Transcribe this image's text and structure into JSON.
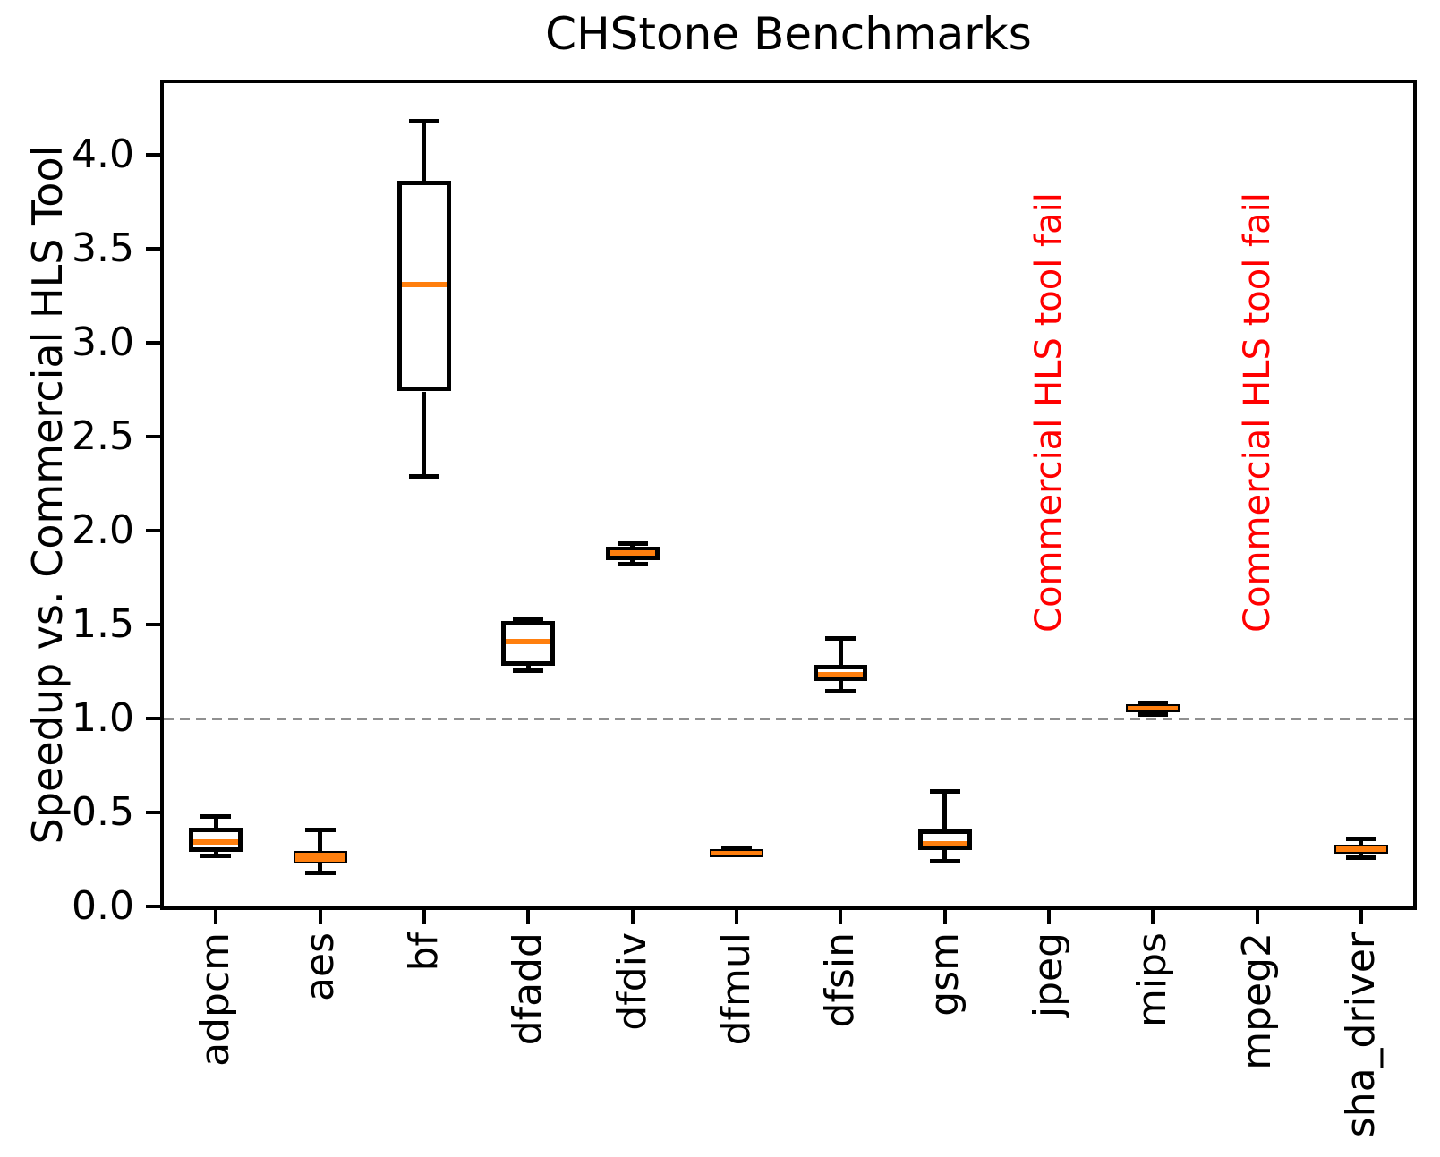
{
  "chart_data": {
    "type": "boxplot",
    "title": "CHStone Benchmarks",
    "ylabel": "Speedup vs. Commercial HLS Tool",
    "ylim": [
      0,
      4.38
    ],
    "yticks": [
      "0.0",
      "0.5",
      "1.0",
      "1.5",
      "2.0",
      "2.5",
      "3.0",
      "3.5",
      "4.0"
    ],
    "grid": false,
    "legend": null,
    "reference_line": {
      "y": 1.0,
      "style": "dashed",
      "color": "#909090"
    },
    "fail_label": "Commercial HLS tool fail",
    "categories": [
      "adpcm",
      "aes",
      "bf",
      "dfadd",
      "dfdiv",
      "dfmul",
      "dfsin",
      "gsm",
      "jpeg",
      "mips",
      "mpeg2",
      "sha_driver"
    ],
    "boxes": [
      {
        "label": "adpcm",
        "whislo": 0.27,
        "q1": 0.29,
        "med": 0.345,
        "q3": 0.42,
        "whishi": 0.48
      },
      {
        "label": "aes",
        "whislo": 0.18,
        "q1": 0.23,
        "med": 0.255,
        "q3": 0.295,
        "whishi": 0.405
      },
      {
        "label": "bf",
        "whislo": 2.29,
        "q1": 2.74,
        "med": 3.31,
        "q3": 3.86,
        "whishi": 4.18
      },
      {
        "label": "dfadd",
        "whislo": 1.255,
        "q1": 1.28,
        "med": 1.41,
        "q3": 1.52,
        "whishi": 1.53
      },
      {
        "label": "dfdiv",
        "whislo": 1.82,
        "q1": 1.845,
        "med": 1.88,
        "q3": 1.915,
        "whishi": 1.93
      },
      {
        "label": "dfmul",
        "whislo": 0.275,
        "q1": 0.28,
        "med": 0.29,
        "q3": 0.305,
        "whishi": 0.31
      },
      {
        "label": "dfsin",
        "whislo": 1.145,
        "q1": 1.2,
        "med": 1.233,
        "q3": 1.286,
        "whishi": 1.425
      },
      {
        "label": "gsm",
        "whislo": 0.24,
        "q1": 0.3,
        "med": 0.335,
        "q3": 0.41,
        "whishi": 0.61
      },
      {
        "label": "jpeg",
        "fail": true
      },
      {
        "label": "mips",
        "whislo": 1.02,
        "q1": 1.035,
        "med": 1.055,
        "q3": 1.075,
        "whishi": 1.085
      },
      {
        "label": "mpeg2",
        "fail": true
      },
      {
        "label": "sha_driver",
        "whislo": 0.26,
        "q1": 0.28,
        "med": 0.3,
        "q3": 0.33,
        "whishi": 0.36
      }
    ],
    "colors": {
      "median": "#ff7f0e",
      "line": "#000000",
      "fail_text": "#ff0000",
      "background": "#ffffff"
    }
  }
}
